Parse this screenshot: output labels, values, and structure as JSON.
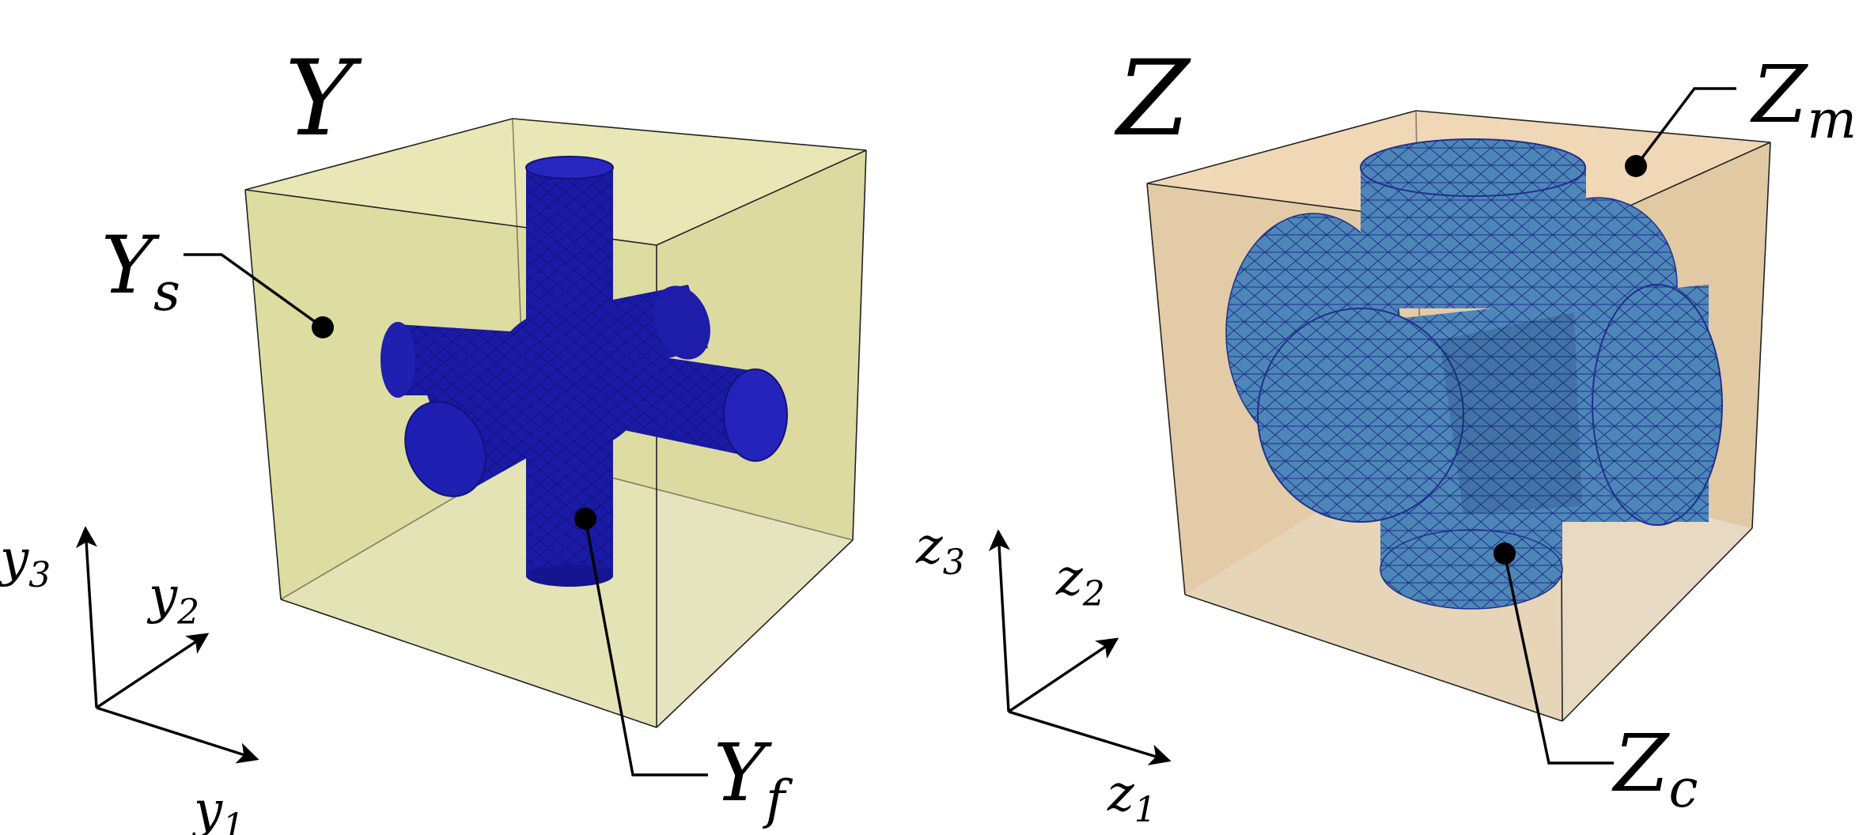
{
  "colors": {
    "cell_y_fill": "#d8d89a",
    "cell_z_fill": "#e2c59f",
    "fiber": "#1a1aa6",
    "inclusion": "#4d87b8",
    "mesh_line": "#1f2f8c"
  },
  "cell_y": {
    "title": "Y",
    "solid": {
      "base": "Y",
      "sub": "s"
    },
    "fiber": {
      "base": "Y",
      "sub": "f"
    },
    "axes": [
      {
        "base": "y",
        "sub": "1"
      },
      {
        "base": "y",
        "sub": "2"
      },
      {
        "base": "y",
        "sub": "3"
      }
    ]
  },
  "cell_z": {
    "title": "Z",
    "matrix": {
      "base": "Z",
      "sub": "m"
    },
    "core": {
      "base": "Z",
      "sub": "c"
    },
    "axes": [
      {
        "base": "z",
        "sub": "1"
      },
      {
        "base": "z",
        "sub": "2"
      },
      {
        "base": "z",
        "sub": "3"
      }
    ]
  }
}
